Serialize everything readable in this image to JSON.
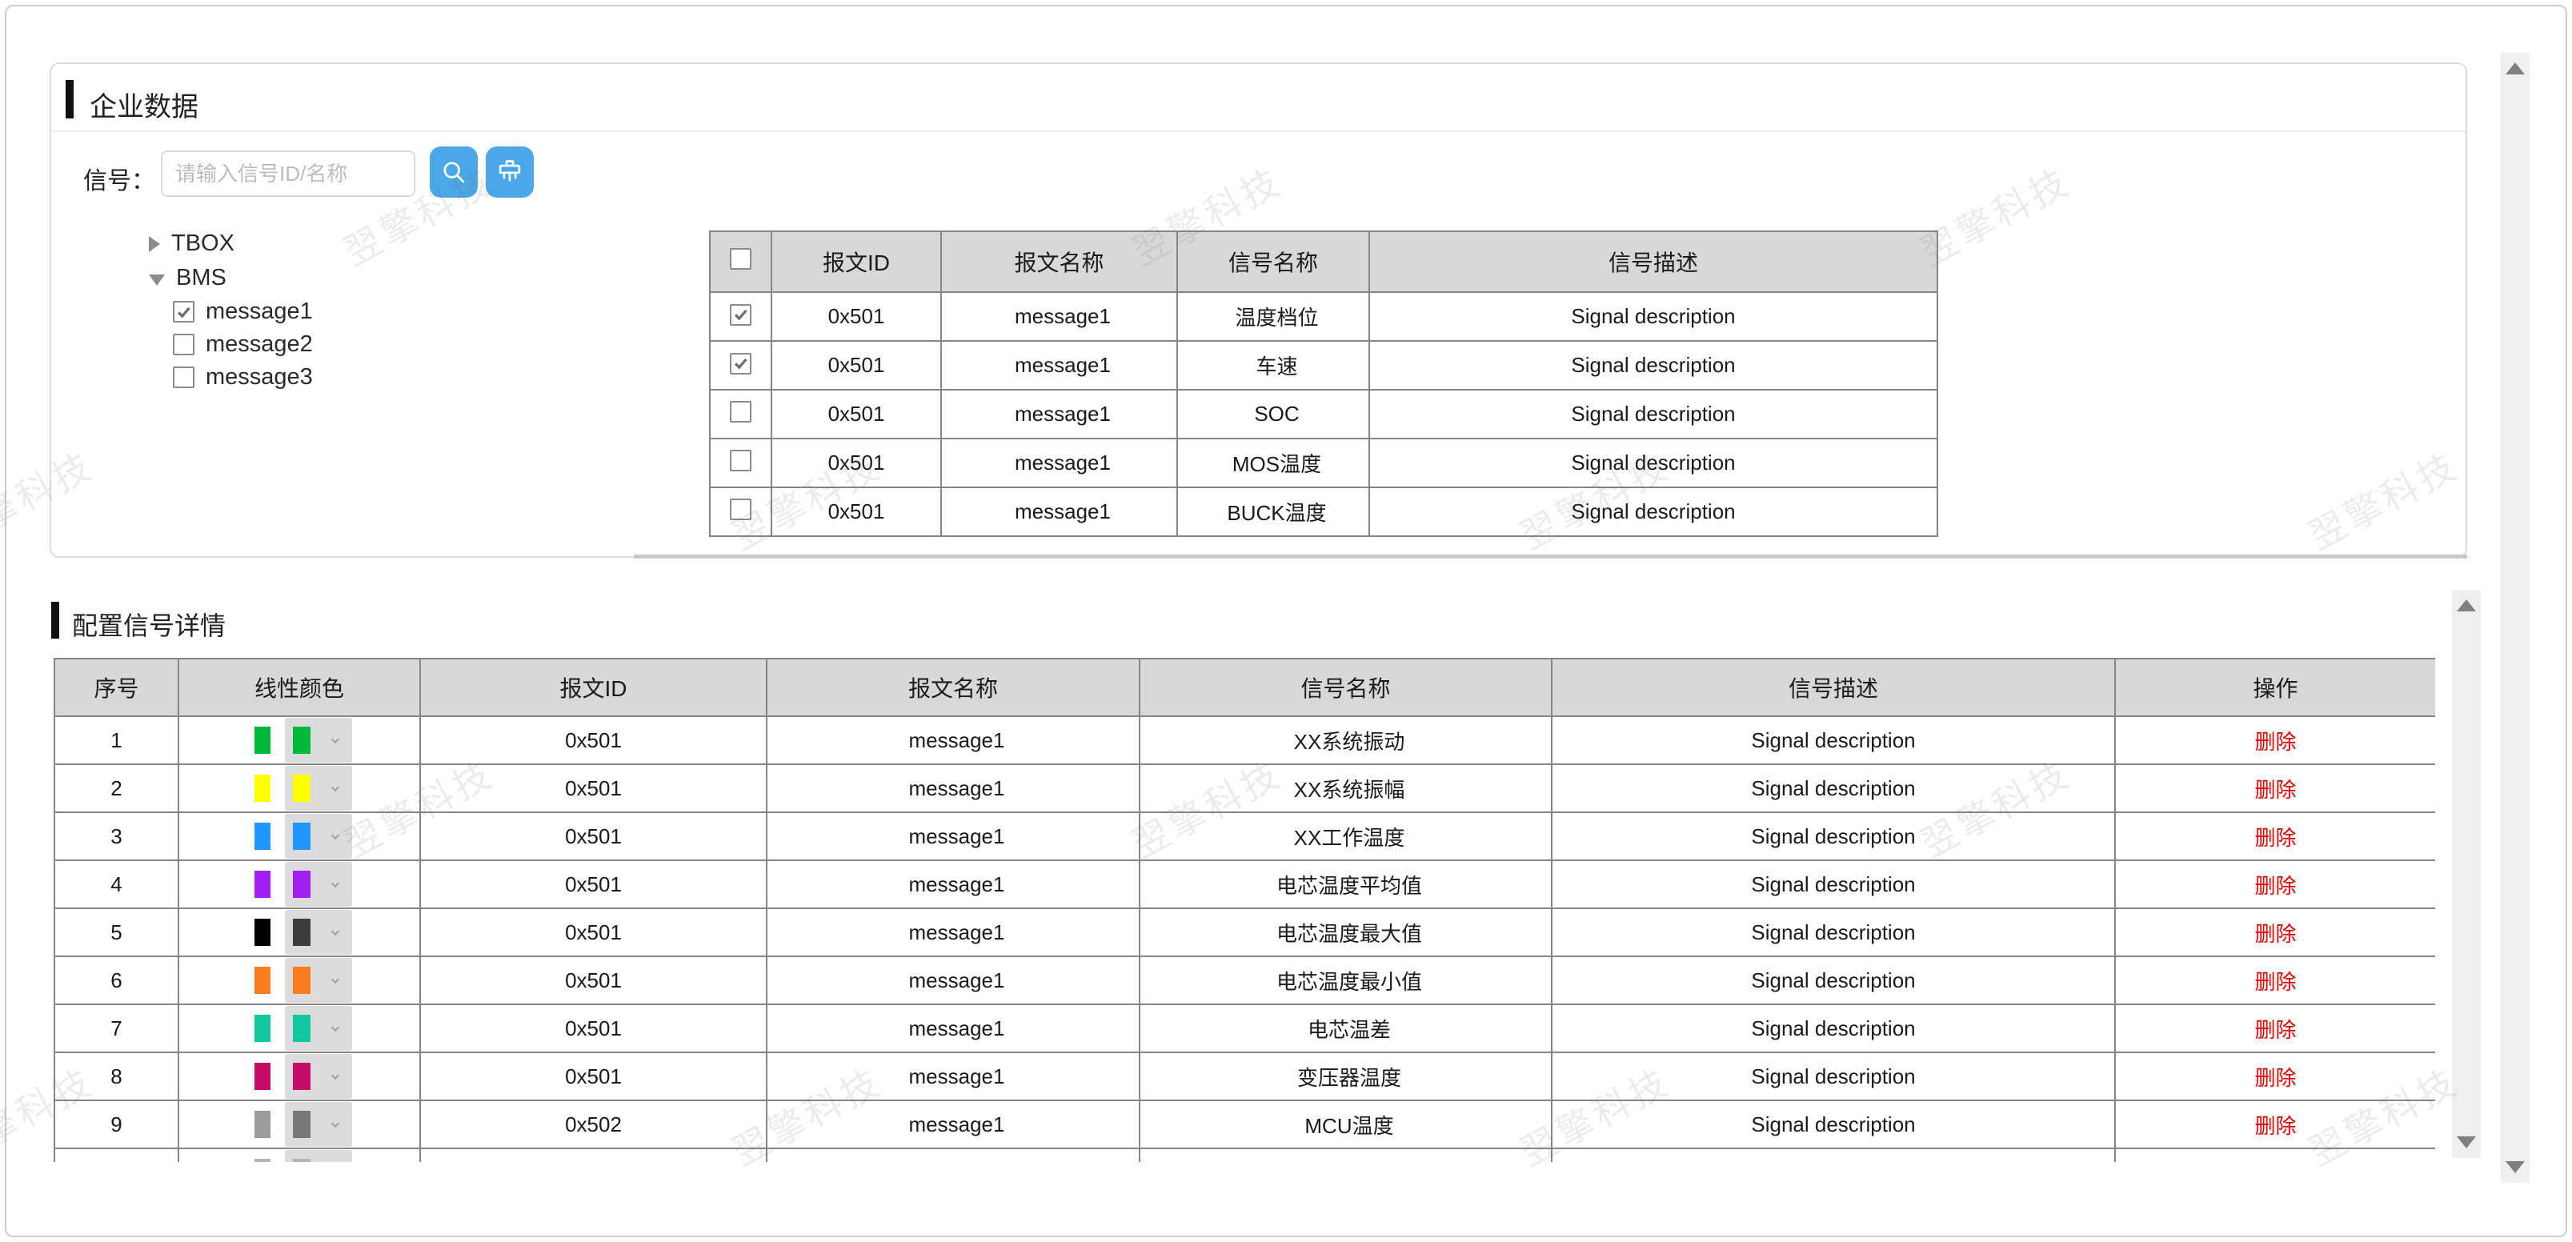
{
  "watermark": {
    "text": "翌擎科技"
  },
  "colors": {
    "accent_blue": "#4aa7e8",
    "delete_red": "#e60000",
    "header_bg": "#d8d8d8",
    "table_border": "#868686",
    "watermark_gray": "#e8e8e8"
  },
  "enterprise_panel": {
    "title": "企业数据",
    "search_label": "信号：",
    "search_placeholder": "请输入信号ID/名称",
    "icons": {
      "search": "magnifier-icon",
      "clear": "brush-icon"
    },
    "tree": [
      {
        "label": "TBOX",
        "expanded": false,
        "children": []
      },
      {
        "label": "BMS",
        "expanded": true,
        "children": [
          {
            "label": "message1",
            "checked": true
          },
          {
            "label": "message2",
            "checked": false
          },
          {
            "label": "message3",
            "checked": false
          }
        ]
      }
    ],
    "signal_table": {
      "columns": [
        "",
        "报文ID",
        "报文名称",
        "信号名称",
        "信号描述"
      ],
      "rows": [
        {
          "checked": true,
          "msg_id": "0x501",
          "msg_name": "message1",
          "signal_name": "温度档位",
          "signal_desc": "Signal description"
        },
        {
          "checked": true,
          "msg_id": "0x501",
          "msg_name": "message1",
          "signal_name": "车速",
          "signal_desc": "Signal description"
        },
        {
          "checked": false,
          "msg_id": "0x501",
          "msg_name": "message1",
          "signal_name": "SOC",
          "signal_desc": "Signal description"
        },
        {
          "checked": false,
          "msg_id": "0x501",
          "msg_name": "message1",
          "signal_name": "MOS温度",
          "signal_desc": "Signal description"
        },
        {
          "checked": false,
          "msg_id": "0x501",
          "msg_name": "message1",
          "signal_name": "BUCK温度",
          "signal_desc": "Signal description"
        }
      ]
    }
  },
  "config_panel": {
    "title": "配置信号详情",
    "detail_table": {
      "columns": [
        "序号",
        "线性颜色",
        "报文ID",
        "报文名称",
        "信号名称",
        "信号描述",
        "操作"
      ],
      "delete_label": "删除",
      "rows": [
        {
          "index": "1",
          "color": "#00b93b",
          "dropdown_color": "#00b93b",
          "msg_id": "0x501",
          "msg_name": "message1",
          "signal_name": "XX系统振动",
          "signal_desc": "Signal description"
        },
        {
          "index": "2",
          "color": "#ffff00",
          "dropdown_color": "#ffff00",
          "msg_id": "0x501",
          "msg_name": "message1",
          "signal_name": "XX系统振幅",
          "signal_desc": "Signal description"
        },
        {
          "index": "3",
          "color": "#1f97ff",
          "dropdown_color": "#1f97ff",
          "msg_id": "0x501",
          "msg_name": "message1",
          "signal_name": "XX工作温度",
          "signal_desc": "Signal description"
        },
        {
          "index": "4",
          "color": "#a020f0",
          "dropdown_color": "#a020f0",
          "msg_id": "0x501",
          "msg_name": "message1",
          "signal_name": "电芯温度平均值",
          "signal_desc": "Signal description"
        },
        {
          "index": "5",
          "color": "#000000",
          "dropdown_color": "#3d3d3d",
          "msg_id": "0x501",
          "msg_name": "message1",
          "signal_name": "电芯温度最大值",
          "signal_desc": "Signal description"
        },
        {
          "index": "6",
          "color": "#fb7b21",
          "dropdown_color": "#fb7b21",
          "msg_id": "0x501",
          "msg_name": "message1",
          "signal_name": "电芯温度最小值",
          "signal_desc": "Signal description"
        },
        {
          "index": "7",
          "color": "#12c79e",
          "dropdown_color": "#12c79e",
          "msg_id": "0x501",
          "msg_name": "message1",
          "signal_name": "电芯温差",
          "signal_desc": "Signal description"
        },
        {
          "index": "8",
          "color": "#c40e6a",
          "dropdown_color": "#c40e6a",
          "msg_id": "0x501",
          "msg_name": "message1",
          "signal_name": "变压器温度",
          "signal_desc": "Signal description"
        },
        {
          "index": "9",
          "color": "#9b9b9b",
          "dropdown_color": "#787878",
          "msg_id": "0x502",
          "msg_name": "message1",
          "signal_name": "MCU温度",
          "signal_desc": "Signal description"
        },
        {
          "index": "",
          "color": "#b5b5b5",
          "dropdown_color": "#b5b5b5",
          "msg_id": "",
          "msg_name": "",
          "signal_name": "",
          "signal_desc": "",
          "partial": true
        }
      ]
    }
  }
}
